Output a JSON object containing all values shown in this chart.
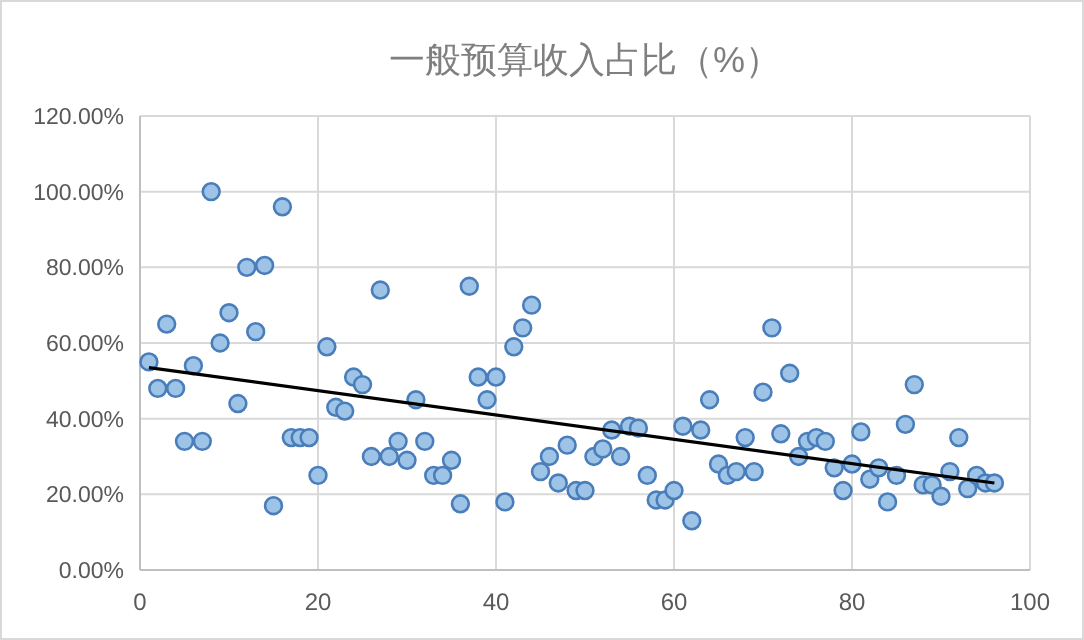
{
  "chart_data": {
    "type": "scatter",
    "title": "一般预算收入占比（%）",
    "grid": true,
    "xlim": [
      0,
      100
    ],
    "xticks": [
      0,
      20,
      40,
      60,
      80,
      100
    ],
    "ylim": [
      0,
      120
    ],
    "yticks": [
      {
        "value": 0,
        "label": "0.00%"
      },
      {
        "value": 20,
        "label": "20.00%"
      },
      {
        "value": 40,
        "label": "40.00%"
      },
      {
        "value": 60,
        "label": "60.00%"
      },
      {
        "value": 80,
        "label": "80.00%"
      },
      {
        "value": 100,
        "label": "100.00%"
      },
      {
        "value": 120,
        "label": "120.00%"
      }
    ],
    "series": [
      {
        "marker": "circle",
        "color": "#9dc3e6",
        "x": [
          1,
          2,
          3,
          4,
          5,
          6,
          7,
          8,
          9,
          10,
          11,
          12,
          13,
          14,
          15,
          16,
          17,
          18,
          19,
          20,
          21,
          22,
          23,
          24,
          25,
          26,
          27,
          28,
          29,
          30,
          31,
          32,
          33,
          34,
          35,
          36,
          37,
          38,
          39,
          40,
          41,
          42,
          43,
          44,
          45,
          46,
          47,
          48,
          49,
          50,
          51,
          52,
          53,
          54,
          55,
          56,
          57,
          58,
          59,
          60,
          61,
          62,
          63,
          64,
          65,
          66,
          67,
          68,
          69,
          70,
          71,
          72,
          73,
          74,
          75,
          76,
          77,
          78,
          79,
          80,
          81,
          82,
          83,
          84,
          85,
          86,
          87,
          88,
          89,
          90,
          91,
          92,
          93,
          94,
          95,
          96
        ],
        "values": [
          55,
          48,
          65,
          48,
          34,
          54,
          34,
          100,
          60,
          68,
          44,
          80,
          63,
          80.5,
          17,
          96,
          35,
          35,
          35,
          25,
          59,
          43,
          42,
          51,
          49,
          30,
          74,
          30,
          34,
          29,
          45,
          34,
          25,
          25,
          29,
          17.5,
          75,
          51,
          45,
          51,
          18,
          59,
          64,
          70,
          26,
          30,
          23,
          33,
          21,
          21,
          30,
          32,
          37,
          30,
          38,
          37.5,
          25,
          18.5,
          18.5,
          21,
          38,
          13,
          37,
          45,
          28,
          25,
          26,
          35,
          26,
          47,
          64,
          36,
          52,
          30,
          34,
          35,
          34,
          27,
          21,
          28,
          36.5,
          24,
          27,
          18,
          25,
          38.5,
          49,
          22.5,
          22.5,
          19.5,
          26,
          35,
          21.5,
          25,
          23,
          23
        ]
      },
      {
        "type": "line",
        "marker": "none",
        "color": "#000000",
        "x": [
          1,
          96
        ],
        "values": [
          53.5,
          23
        ]
      }
    ]
  }
}
